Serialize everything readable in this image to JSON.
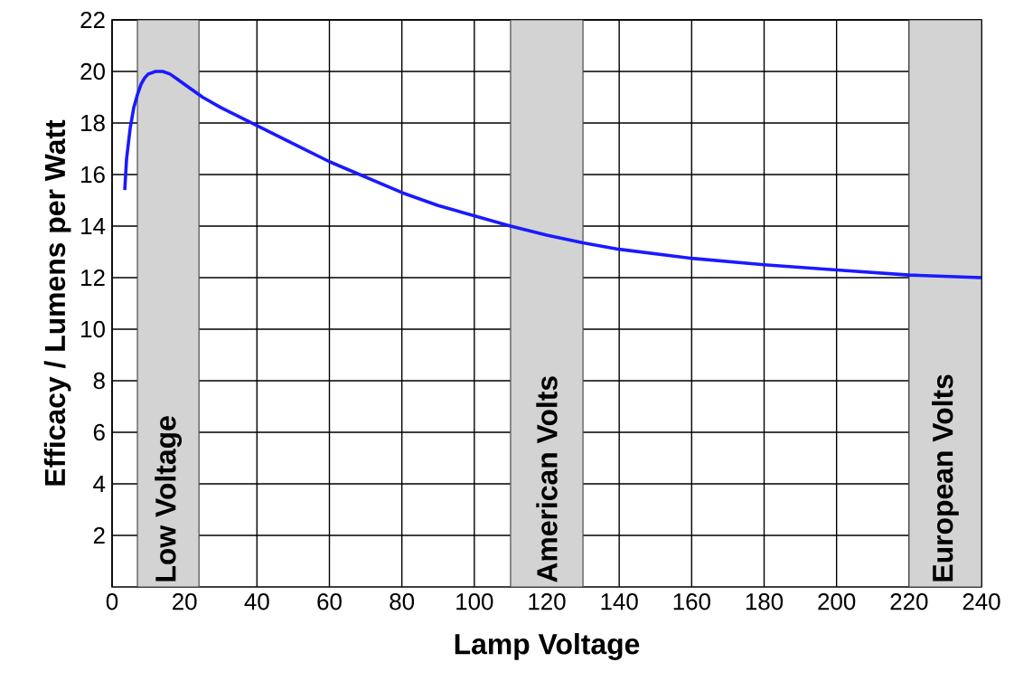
{
  "chart_data": {
    "type": "line",
    "xlabel": "Lamp Voltage",
    "ylabel": "Efficacy / Lumens per Watt",
    "x": [
      3.5,
      4,
      5,
      6,
      7,
      8,
      9,
      10,
      12,
      14,
      16,
      18,
      20,
      25,
      30,
      40,
      50,
      60,
      70,
      80,
      90,
      100,
      110,
      120,
      130,
      140,
      160,
      180,
      200,
      220,
      240
    ],
    "series": [
      {
        "color": "#1a1aff",
        "values": [
          15.4,
          16.6,
          17.8,
          18.6,
          19.1,
          19.5,
          19.75,
          19.9,
          20.0,
          20.0,
          19.9,
          19.7,
          19.5,
          19.0,
          18.6,
          17.9,
          17.2,
          16.5,
          15.9,
          15.3,
          14.8,
          14.4,
          14.0,
          13.65,
          13.35,
          13.1,
          12.75,
          12.5,
          12.3,
          12.1,
          12.0
        ]
      }
    ],
    "xlim": [
      0,
      240
    ],
    "ylim": [
      0,
      22
    ],
    "xticks": [
      0,
      20,
      40,
      60,
      80,
      100,
      120,
      140,
      160,
      180,
      200,
      220,
      240
    ],
    "yticks": [
      2,
      4,
      6,
      8,
      10,
      12,
      14,
      16,
      18,
      20,
      22
    ],
    "grid": true,
    "marker": "none",
    "line_style": "solid",
    "bands": [
      {
        "axis": "x",
        "from": 7,
        "to": 24,
        "label": "Low Voltage",
        "color": "#d3d3d3"
      },
      {
        "axis": "x",
        "from": 110,
        "to": 130,
        "label": "American Volts",
        "color": "#d3d3d3"
      },
      {
        "axis": "x",
        "from": 220,
        "to": 240,
        "label": "European Volts",
        "color": "#d3d3d3"
      }
    ]
  }
}
